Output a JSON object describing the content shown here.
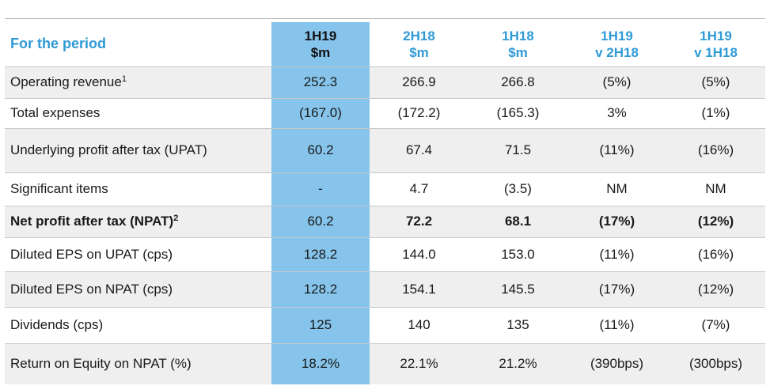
{
  "table": {
    "header_label": "For the period",
    "columns": [
      {
        "line1": "1H19",
        "line2": "$m"
      },
      {
        "line1": "2H18",
        "line2": "$m"
      },
      {
        "line1": "1H18",
        "line2": "$m"
      },
      {
        "line1": "1H19",
        "line2": "v 2H18"
      },
      {
        "line1": "1H19",
        "line2": "v 1H18"
      }
    ],
    "rows": [
      {
        "label": "Operating revenue",
        "sup": "1",
        "values": [
          "252.3",
          "266.9",
          "266.8",
          "(5%)",
          "(5%)"
        ]
      },
      {
        "label": "Total expenses",
        "sup": "",
        "values": [
          "(167.0)",
          "(172.2)",
          "(165.3)",
          "3%",
          "(1%)"
        ]
      },
      {
        "label": "Underlying profit after tax (UPAT)",
        "sup": "",
        "values": [
          "60.2",
          "67.4",
          "71.5",
          "(11%)",
          "(16%)"
        ]
      },
      {
        "label": "Significant items",
        "sup": "",
        "values": [
          "-",
          "4.7",
          "(3.5)",
          "NM",
          "NM"
        ]
      },
      {
        "label": "Net profit after tax (NPAT)",
        "sup": "2",
        "values": [
          "60.2",
          "72.2",
          "68.1",
          "(17%)",
          "(12%)"
        ]
      },
      {
        "label": "Diluted EPS on UPAT (cps)",
        "sup": "",
        "values": [
          "128.2",
          "144.0",
          "153.0",
          "(11%)",
          "(16%)"
        ]
      },
      {
        "label": "Diluted EPS on NPAT (cps)",
        "sup": "",
        "values": [
          "128.2",
          "154.1",
          "145.5",
          "(17%)",
          "(12%)"
        ]
      },
      {
        "label": "Dividends (cps)",
        "sup": "",
        "values": [
          "125",
          "140",
          "135",
          "(11%)",
          "(7%)"
        ]
      },
      {
        "label": "Return on Equity on NPAT (%)",
        "sup": "",
        "values": [
          "18.2%",
          "22.1%",
          "21.2%",
          "(390bps)",
          "(300bps)"
        ]
      }
    ]
  }
}
